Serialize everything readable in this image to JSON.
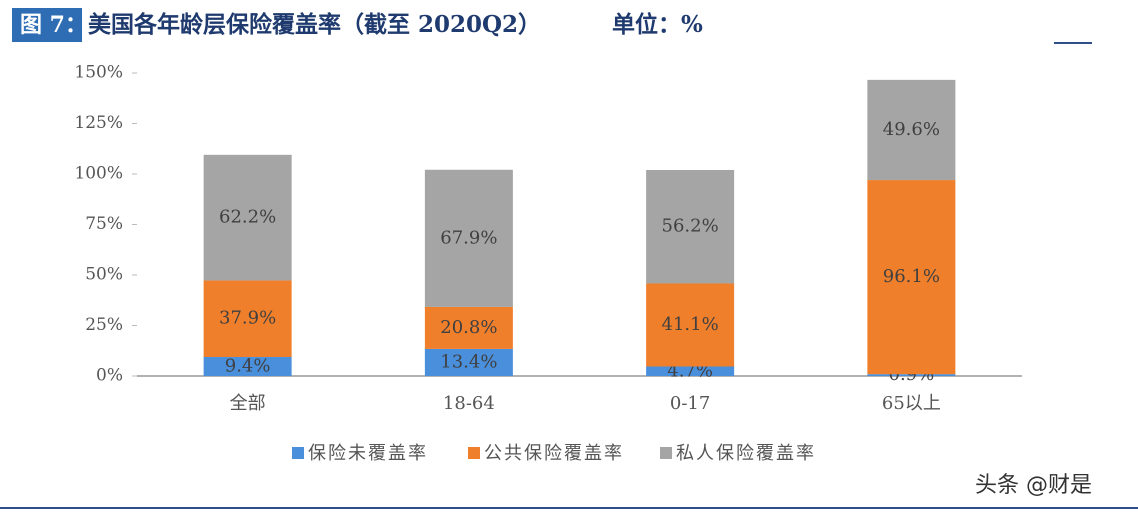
{
  "chart_data": {
    "type": "stacked-bar",
    "figure_label": "图 7：",
    "title": "美国各年龄层保险覆盖率（截至 2020Q2）",
    "unit_note": "单位：%",
    "watermark": "头条 @财是",
    "categories": [
      "全部",
      "18-64",
      "0-17",
      "65以上"
    ],
    "series": [
      {
        "name": "保险未覆盖率",
        "color": "#4a8fdc",
        "values": [
          9.4,
          13.4,
          4.7,
          0.9
        ],
        "value_labels": [
          "9.4%",
          "13.4%",
          "4.7%",
          "0.9%"
        ]
      },
      {
        "name": "公共保险覆盖率",
        "color": "#f07f2b",
        "values": [
          37.9,
          20.8,
          41.1,
          96.1
        ],
        "value_labels": [
          "37.9%",
          "20.8%",
          "41.1%",
          "96.1%"
        ]
      },
      {
        "name": "私人保险覆盖率",
        "color": "#a5a5a5",
        "values": [
          62.2,
          67.9,
          56.2,
          49.6
        ],
        "value_labels": [
          "62.2%",
          "67.9%",
          "56.2%",
          "49.6%"
        ]
      }
    ],
    "ylim": [
      0,
      150
    ],
    "yticks": [
      {
        "value": 0,
        "label": "0%"
      },
      {
        "value": 25,
        "label": "25%"
      },
      {
        "value": 50,
        "label": "50%"
      },
      {
        "value": 75,
        "label": "75%"
      },
      {
        "value": 100,
        "label": "100%"
      },
      {
        "value": 125,
        "label": "125%"
      },
      {
        "value": 150,
        "label": "150%"
      }
    ],
    "legend": "bottom"
  }
}
